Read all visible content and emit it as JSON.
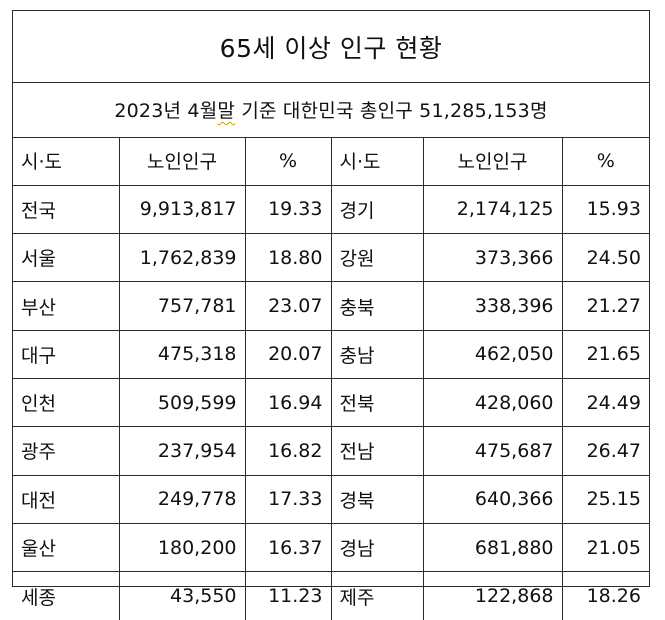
{
  "title": "65세 이상 인구 현황",
  "subtitle": {
    "year_prefix": "2023년 4월",
    "year_marked": "말",
    "rest": " 기준 대한민국 총인구 51,285,153명"
  },
  "columns": {
    "region": "시·도",
    "elderly": "노인인구",
    "percent": "%"
  },
  "left_rows": [
    {
      "region": "전국",
      "elderly": "9,913,817",
      "percent": "19.33"
    },
    {
      "region": "서울",
      "elderly": "1,762,839",
      "percent": "18.80"
    },
    {
      "region": "부산",
      "elderly": "757,781",
      "percent": "23.07"
    },
    {
      "region": "대구",
      "elderly": "475,318",
      "percent": "20.07"
    },
    {
      "region": "인천",
      "elderly": "509,599",
      "percent": "16.94"
    },
    {
      "region": "광주",
      "elderly": "237,954",
      "percent": "16.82"
    },
    {
      "region": "대전",
      "elderly": "249,778",
      "percent": "17.33"
    },
    {
      "region": "울산",
      "elderly": "180,200",
      "percent": "16.37"
    },
    {
      "region": "세종",
      "elderly": "43,550",
      "percent": "11.23"
    }
  ],
  "right_rows": [
    {
      "region": "경기",
      "elderly": "2,174,125",
      "percent": "15.93"
    },
    {
      "region": "강원",
      "elderly": "373,366",
      "percent": "24.50"
    },
    {
      "region": "충북",
      "elderly": "338,396",
      "percent": "21.27"
    },
    {
      "region": "충남",
      "elderly": "462,050",
      "percent": "21.65"
    },
    {
      "region": "전북",
      "elderly": "428,060",
      "percent": "24.49"
    },
    {
      "region": "전남",
      "elderly": "475,687",
      "percent": "26.47"
    },
    {
      "region": "경북",
      "elderly": "640,366",
      "percent": "25.15"
    },
    {
      "region": "경남",
      "elderly": "681,880",
      "percent": "21.05"
    },
    {
      "region": "제주",
      "elderly": "122,868",
      "percent": "18.26"
    }
  ]
}
